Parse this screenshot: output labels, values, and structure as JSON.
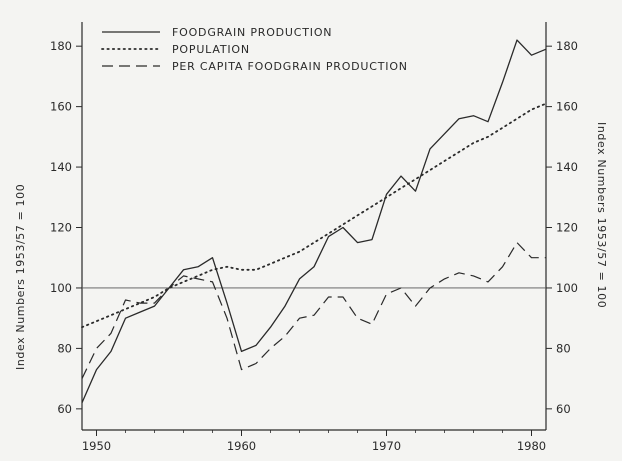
{
  "chart_data": {
    "type": "line",
    "title": "",
    "xlabel": "",
    "ylabel_left": "Index Numbers   1953/57 = 100",
    "ylabel_right": "Index Numbers 1953/57 = 100",
    "xlim": [
      1949,
      1981
    ],
    "ylim": [
      53,
      188
    ],
    "x_ticks": [
      1950,
      1960,
      1970,
      1980
    ],
    "y_ticks": [
      60,
      80,
      100,
      120,
      140,
      160,
      180
    ],
    "reference_line": 100,
    "grid": false,
    "legend_position": "top-left",
    "series": [
      {
        "name": "FOODGRAIN PRODUCTION",
        "style": "solid",
        "x": [
          1949,
          1950,
          1951,
          1952,
          1953,
          1954,
          1955,
          1956,
          1957,
          1958,
          1959,
          1960,
          1961,
          1962,
          1963,
          1964,
          1965,
          1966,
          1967,
          1968,
          1969,
          1970,
          1971,
          1972,
          1973,
          1974,
          1975,
          1976,
          1977,
          1978,
          1979,
          1980,
          1981
        ],
        "values": [
          62,
          73,
          79,
          90,
          92,
          94,
          100,
          106,
          107,
          110,
          95,
          79,
          81,
          87,
          94,
          103,
          107,
          117,
          120,
          115,
          116,
          131,
          137,
          132,
          146,
          151,
          156,
          157,
          155,
          168,
          182,
          177,
          179
        ]
      },
      {
        "name": "POPULATION",
        "style": "dotted",
        "x": [
          1949,
          1950,
          1951,
          1952,
          1953,
          1954,
          1955,
          1956,
          1957,
          1958,
          1959,
          1960,
          1961,
          1962,
          1963,
          1964,
          1965,
          1966,
          1967,
          1968,
          1969,
          1970,
          1971,
          1972,
          1973,
          1974,
          1975,
          1976,
          1977,
          1978,
          1979,
          1980,
          1981
        ],
        "values": [
          87,
          89,
          91,
          93,
          95,
          97,
          100,
          102,
          104,
          106,
          107,
          106,
          106,
          108,
          110,
          112,
          115,
          118,
          121,
          124,
          127,
          130,
          133,
          136,
          139,
          142,
          145,
          148,
          150,
          153,
          156,
          159,
          161
        ]
      },
      {
        "name": "PER CAPITA FOODGRAIN PRODUCTION",
        "style": "dashed",
        "x": [
          1949,
          1950,
          1951,
          1952,
          1953,
          1954,
          1955,
          1956,
          1957,
          1958,
          1959,
          1960,
          1961,
          1962,
          1963,
          1964,
          1965,
          1966,
          1967,
          1968,
          1969,
          1970,
          1971,
          1972,
          1973,
          1974,
          1975,
          1976,
          1977,
          1978,
          1979,
          1980,
          1981
        ],
        "values": [
          70,
          80,
          85,
          96,
          95,
          95,
          100,
          104,
          103,
          102,
          90,
          73,
          75,
          80,
          84,
          90,
          91,
          97,
          97,
          90,
          88,
          98,
          100,
          94,
          100,
          103,
          105,
          104,
          102,
          107,
          115,
          110,
          110
        ]
      }
    ]
  }
}
